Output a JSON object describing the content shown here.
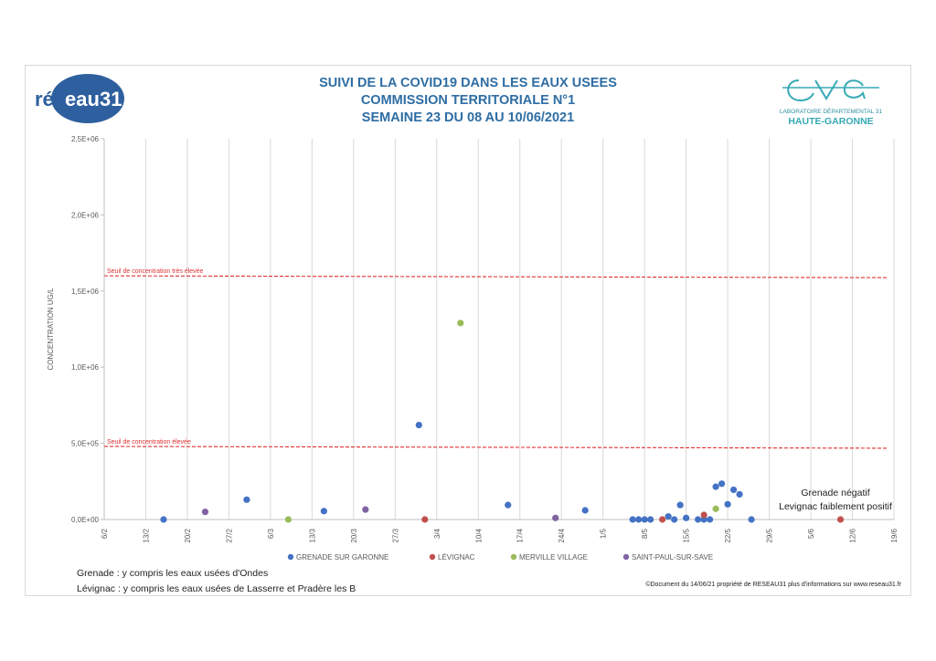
{
  "header": {
    "title_lines": [
      "SUIVI DE LA COVID19 DANS LES EAUX USEES",
      "COMMISSION TERRITORIALE N°1",
      "SEMAINE 23 DU 08 AU 10/06/2021"
    ],
    "logo_left_text": {
      "part1": "rés",
      "part2": "eau31"
    },
    "logo_right_line1": "LABORATOIRE DÉPARTEMENTAL 31",
    "logo_right_line2": "HAUTE-GARONNE"
  },
  "notes": {
    "grenade": "Grenade : y compris les eaux usées d'Ondes",
    "levignac": "Lévignac : y compris les eaux usées de Lasserre et Pradère les B"
  },
  "copyright": "©Document du 14/06/21 propriété de RESEAU31 plus d'informations sur www.reseau31.fr",
  "colors": {
    "title": "#2e6da4",
    "grenade": "#4472c4",
    "levignac": "#c0504d",
    "merville": "#9bbb59",
    "saint_paul": "#8064a2",
    "threshold": "#e03030"
  },
  "chart_data": {
    "type": "scatter",
    "ylabel": "CONCENTRATION UG/L",
    "ylim": [
      0,
      2500000
    ],
    "ytick_labels": [
      "0,0E+00",
      "5,0E+05",
      "1,0E+06",
      "1,5E+06",
      "2,0E+06",
      "2,5E+06"
    ],
    "ytick_values": [
      0,
      500000,
      1000000,
      1500000,
      2000000,
      2500000
    ],
    "xlim": [
      "2021-02-06",
      "2021-06-19"
    ],
    "xtick_labels": [
      "6/2",
      "13/2",
      "20/2",
      "27/2",
      "6/3",
      "13/3",
      "20/3",
      "27/3",
      "3/4",
      "10/4",
      "17/4",
      "24/4",
      "1/5",
      "8/5",
      "15/5",
      "22/5",
      "29/5",
      "5/6",
      "12/6",
      "19/6"
    ],
    "xtick_dates": [
      "2021-02-06",
      "2021-02-13",
      "2021-02-20",
      "2021-02-27",
      "2021-03-06",
      "2021-03-13",
      "2021-03-20",
      "2021-03-27",
      "2021-04-03",
      "2021-04-10",
      "2021-04-17",
      "2021-04-24",
      "2021-05-01",
      "2021-05-08",
      "2021-05-15",
      "2021-05-22",
      "2021-05-29",
      "2021-06-05",
      "2021-06-12",
      "2021-06-19"
    ],
    "grid": "vertical",
    "legend_position": "bottom",
    "thresholds": [
      {
        "label": "Seuil de concentration très élevée",
        "value": 1600000
      },
      {
        "label": "Seuil de concentration élevée",
        "value": 480000
      }
    ],
    "annotations": [
      "Grenade négatif",
      "Levignac faiblement positif"
    ],
    "series": [
      {
        "name": "GRENADE SUR GARONNE",
        "color": "#4472c4",
        "points": [
          {
            "x": "2021-02-16",
            "y": 0
          },
          {
            "x": "2021-03-02",
            "y": 130000
          },
          {
            "x": "2021-03-15",
            "y": 55000
          },
          {
            "x": "2021-03-31",
            "y": 620000
          },
          {
            "x": "2021-04-15",
            "y": 95000
          },
          {
            "x": "2021-04-28",
            "y": 60000
          },
          {
            "x": "2021-05-06",
            "y": 0
          },
          {
            "x": "2021-05-07",
            "y": 0
          },
          {
            "x": "2021-05-08",
            "y": 0
          },
          {
            "x": "2021-05-09",
            "y": 0
          },
          {
            "x": "2021-05-12",
            "y": 20000
          },
          {
            "x": "2021-05-13",
            "y": 0
          },
          {
            "x": "2021-05-14",
            "y": 95000
          },
          {
            "x": "2021-05-15",
            "y": 10000
          },
          {
            "x": "2021-05-17",
            "y": 0
          },
          {
            "x": "2021-05-18",
            "y": 0
          },
          {
            "x": "2021-05-19",
            "y": 0
          },
          {
            "x": "2021-05-20",
            "y": 215000
          },
          {
            "x": "2021-05-21",
            "y": 235000
          },
          {
            "x": "2021-05-22",
            "y": 100000
          },
          {
            "x": "2021-05-23",
            "y": 195000
          },
          {
            "x": "2021-05-24",
            "y": 165000
          },
          {
            "x": "2021-05-26",
            "y": 0
          }
        ]
      },
      {
        "name": "LÉVIGNAC",
        "color": "#c0504d",
        "points": [
          {
            "x": "2021-04-01",
            "y": 0
          },
          {
            "x": "2021-05-11",
            "y": 0
          },
          {
            "x": "2021-05-18",
            "y": 30000
          },
          {
            "x": "2021-06-10",
            "y": 0
          }
        ]
      },
      {
        "name": "MERVILLE VILLAGE",
        "color": "#9bbb59",
        "points": [
          {
            "x": "2021-03-09",
            "y": 0
          },
          {
            "x": "2021-04-07",
            "y": 1290000
          },
          {
            "x": "2021-05-20",
            "y": 70000
          }
        ]
      },
      {
        "name": "SAINT-PAUL-SUR-SAVE",
        "color": "#8064a2",
        "points": [
          {
            "x": "2021-02-23",
            "y": 50000
          },
          {
            "x": "2021-03-22",
            "y": 65000
          },
          {
            "x": "2021-04-23",
            "y": 10000
          }
        ]
      }
    ]
  }
}
